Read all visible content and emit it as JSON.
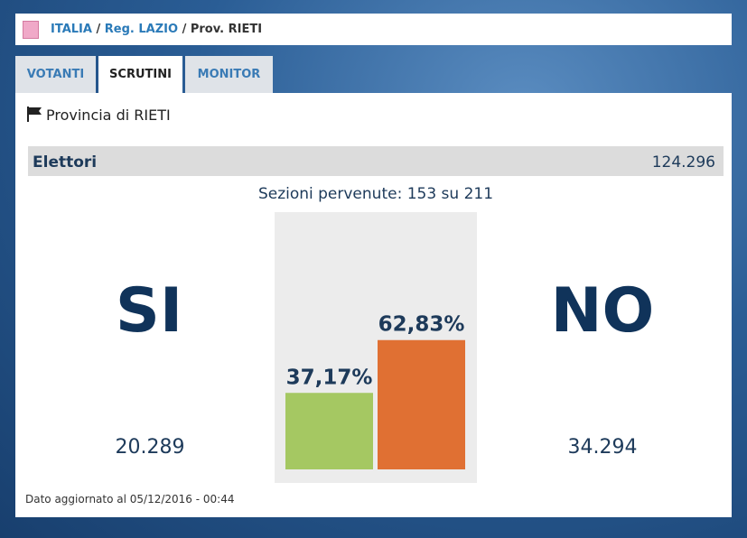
{
  "breadcrumb": {
    "items": [
      "ITALIA",
      "Reg. LAZIO",
      "Prov. RIETI"
    ],
    "separator": "/"
  },
  "tabs": [
    "VOTANTI",
    "SCRUTINI",
    "MONITOR"
  ],
  "province": "Provincia di RIETI",
  "electors": {
    "label": "Elettori",
    "value": "124.296"
  },
  "sections": "Sezioni pervenute: 153 su 211",
  "votes": [
    "20.289",
    "34.294"
  ],
  "footer": "Dato aggiornato al 05/12/2016 - 00:44",
  "chart_data": {
    "type": "bar",
    "categories": [
      "SI",
      "NO"
    ],
    "series": [
      {
        "values": [
          37.17,
          62.83
        ],
        "value_labels": [
          "37,17%",
          "62,83%"
        ],
        "colors": [
          "#a5c862",
          "#e07033"
        ]
      }
    ]
  }
}
